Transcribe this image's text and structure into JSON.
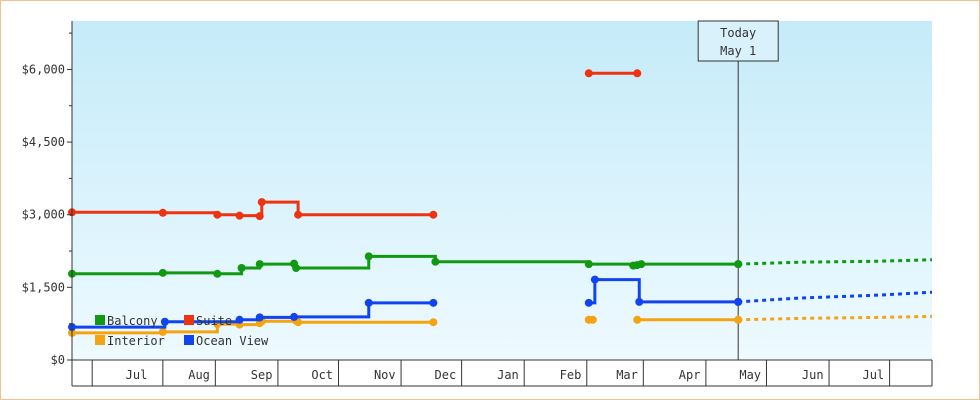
{
  "chart_data": {
    "type": "line",
    "title": "",
    "xlabel": "",
    "ylabel": "",
    "x_range": [
      "2024-06-05",
      "2025-08-05"
    ],
    "ylim": [
      0,
      7000
    ],
    "y_ticks": [
      {
        "value": 0,
        "label": "$0"
      },
      {
        "value": 1500,
        "label": "$1,500"
      },
      {
        "value": 3000,
        "label": "$3,000"
      },
      {
        "value": 4500,
        "label": "$4,500"
      },
      {
        "value": 6000,
        "label": "$6,000"
      }
    ],
    "x_ticks": [
      {
        "date": "2024-07-01",
        "label": "Jul"
      },
      {
        "date": "2024-08-01",
        "label": "Aug"
      },
      {
        "date": "2024-09-01",
        "label": "Sep"
      },
      {
        "date": "2024-10-01",
        "label": "Oct"
      },
      {
        "date": "2024-11-01",
        "label": "Nov"
      },
      {
        "date": "2024-12-01",
        "label": "Dec"
      },
      {
        "date": "2025-01-01",
        "label": "Jan"
      },
      {
        "date": "2025-02-01",
        "label": "Feb"
      },
      {
        "date": "2025-03-01",
        "label": "Mar"
      },
      {
        "date": "2025-04-01",
        "label": "Apr"
      },
      {
        "date": "2025-05-01",
        "label": "May"
      },
      {
        "date": "2025-06-01",
        "label": "Jun"
      },
      {
        "date": "2025-07-01",
        "label": "Jul"
      }
    ],
    "grid": false,
    "legend_position": "bottom-left",
    "today": {
      "date": "2025-05-01",
      "label_line1": "Today",
      "label_line2": "May 1"
    },
    "series": [
      {
        "name": "Balcony",
        "color": "#119911",
        "segments": [
          [
            [
              "2024-06-05",
              1780
            ],
            [
              "2024-07-20",
              1800
            ],
            [
              "2024-08-16",
              1780
            ],
            [
              "2024-08-27",
              1780
            ],
            [
              "2024-08-28",
              1900
            ],
            [
              "2024-09-05",
              1900
            ],
            [
              "2024-09-06",
              1980
            ],
            [
              "2024-09-23",
              1990
            ],
            [
              "2024-09-24",
              1900
            ],
            [
              "2024-10-29",
              1900
            ],
            [
              "2024-10-30",
              2140
            ],
            [
              "2024-12-01",
              2140
            ],
            [
              "2024-12-02",
              2030
            ],
            [
              "2025-02-15",
              2030
            ],
            [
              "2025-02-16",
              1980
            ],
            [
              "2025-03-10",
              1950
            ],
            [
              "2025-03-12",
              1960
            ],
            [
              "2025-03-14",
              1980
            ],
            [
              "2025-05-01",
              1980
            ]
          ]
        ],
        "projection": [
          [
            "2025-05-01",
            1980
          ],
          [
            "2025-06-01",
            2020
          ],
          [
            "2025-07-10",
            2040
          ],
          [
            "2025-08-05",
            2070
          ]
        ]
      },
      {
        "name": "Suite",
        "color": "#ee3311",
        "segments": [
          [
            [
              "2024-06-05",
              3050
            ],
            [
              "2024-07-20",
              3040
            ],
            [
              "2024-08-16",
              3000
            ],
            [
              "2024-08-27",
              2980
            ],
            [
              "2024-09-06",
              2970
            ],
            [
              "2024-09-07",
              3260
            ],
            [
              "2024-09-24",
              3260
            ],
            [
              "2024-09-25",
              3000
            ],
            [
              "2024-12-01",
              3000
            ]
          ],
          [
            [
              "2025-02-16",
              5920
            ],
            [
              "2025-03-12",
              5920
            ]
          ]
        ]
      },
      {
        "name": "Interior",
        "color": "#f5a310",
        "segments": [
          [
            [
              "2024-06-05",
              560
            ],
            [
              "2024-07-20",
              580
            ],
            [
              "2024-08-16",
              740
            ],
            [
              "2024-08-27",
              730
            ],
            [
              "2024-09-06",
              760
            ],
            [
              "2024-09-07",
              800
            ],
            [
              "2024-09-24",
              810
            ],
            [
              "2024-09-25",
              780
            ],
            [
              "2024-10-30",
              780
            ],
            [
              "2024-12-01",
              780
            ]
          ],
          [
            [
              "2025-02-16",
              830
            ],
            [
              "2025-02-18",
              830
            ]
          ],
          [
            [
              "2025-03-12",
              830
            ],
            [
              "2025-05-01",
              830
            ]
          ]
        ],
        "projection": [
          [
            "2025-05-01",
            830
          ],
          [
            "2025-06-01",
            860
          ],
          [
            "2025-07-10",
            880
          ],
          [
            "2025-08-05",
            900
          ]
        ]
      },
      {
        "name": "Ocean View",
        "color": "#1144ee",
        "segments": [
          [
            [
              "2024-06-05",
              680
            ],
            [
              "2024-07-20",
              680
            ],
            [
              "2024-07-21",
              790
            ],
            [
              "2024-08-16",
              790
            ],
            [
              "2024-08-27",
              830
            ],
            [
              "2024-09-05",
              830
            ],
            [
              "2024-09-06",
              880
            ],
            [
              "2024-09-23",
              890
            ],
            [
              "2024-10-29",
              890
            ],
            [
              "2024-10-30",
              1180
            ],
            [
              "2024-12-01",
              1180
            ]
          ],
          [
            [
              "2025-02-16",
              1180
            ],
            [
              "2025-02-18",
              1180
            ],
            [
              "2025-02-19",
              1660
            ],
            [
              "2025-03-12",
              1660
            ],
            [
              "2025-03-13",
              1200
            ],
            [
              "2025-05-01",
              1200
            ]
          ]
        ],
        "projection": [
          [
            "2025-05-01",
            1200
          ],
          [
            "2025-06-01",
            1280
          ],
          [
            "2025-07-10",
            1340
          ],
          [
            "2025-08-05",
            1400
          ]
        ]
      }
    ]
  }
}
